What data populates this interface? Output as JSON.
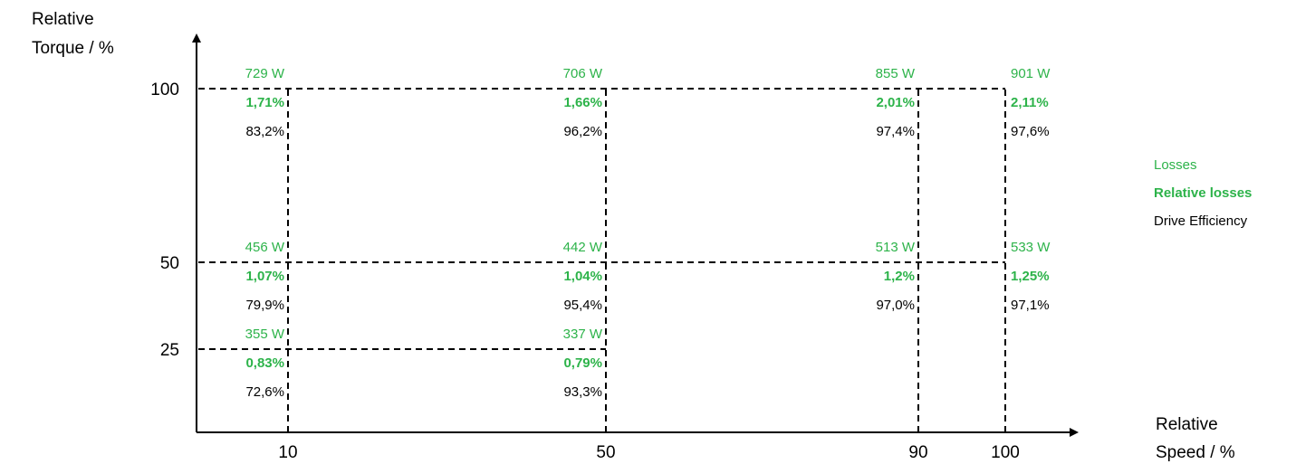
{
  "chart_data": {
    "type": "table",
    "title": "",
    "xlabel_lines": [
      "Relative",
      "Speed / %"
    ],
    "ylabel_lines": [
      "Relative",
      "Torque / %"
    ],
    "x_ticks": [
      {
        "value": 10,
        "label": "10"
      },
      {
        "value": 50,
        "label": "50"
      },
      {
        "value": 90,
        "label": "90"
      },
      {
        "value": 100,
        "label": "100"
      }
    ],
    "y_ticks": [
      {
        "value": 25,
        "label": "25"
      },
      {
        "value": 50,
        "label": "50"
      },
      {
        "value": 100,
        "label": "100"
      }
    ],
    "legend": [
      {
        "label": "Losses",
        "color": "#2db34a",
        "bold": false
      },
      {
        "label": "Relative losses",
        "color": "#2db34a",
        "bold": true
      },
      {
        "label": "Drive Efficiency",
        "color": "#000000",
        "bold": false
      }
    ],
    "colors": {
      "losses": "#2db34a",
      "efficiency": "#000000"
    },
    "points": [
      {
        "speed": 10,
        "torque": 100,
        "losses": "729 W",
        "relative_losses": "1,71%",
        "efficiency": "83,2%"
      },
      {
        "speed": 50,
        "torque": 100,
        "losses": "706 W",
        "relative_losses": "1,66%",
        "efficiency": "96,2%"
      },
      {
        "speed": 90,
        "torque": 100,
        "losses": "855 W",
        "relative_losses": "2,01%",
        "efficiency": "97,4%"
      },
      {
        "speed": 100,
        "torque": 100,
        "losses": "901 W",
        "relative_losses": "2,11%",
        "efficiency": "97,6%"
      },
      {
        "speed": 10,
        "torque": 50,
        "losses": "456 W",
        "relative_losses": "1,07%",
        "efficiency": "79,9%"
      },
      {
        "speed": 50,
        "torque": 50,
        "losses": "442 W",
        "relative_losses": "1,04%",
        "efficiency": "95,4%"
      },
      {
        "speed": 90,
        "torque": 50,
        "losses": "513 W",
        "relative_losses": "1,2%",
        "efficiency": "97,0%"
      },
      {
        "speed": 100,
        "torque": 50,
        "losses": "533 W",
        "relative_losses": "1,25%",
        "efficiency": "97,1%"
      },
      {
        "speed": 10,
        "torque": 25,
        "losses": "355 W",
        "relative_losses": "0,83%",
        "efficiency": "72,6%"
      },
      {
        "speed": 50,
        "torque": 25,
        "losses": "337 W",
        "relative_losses": "0,79%",
        "efficiency": "93,3%"
      }
    ]
  }
}
